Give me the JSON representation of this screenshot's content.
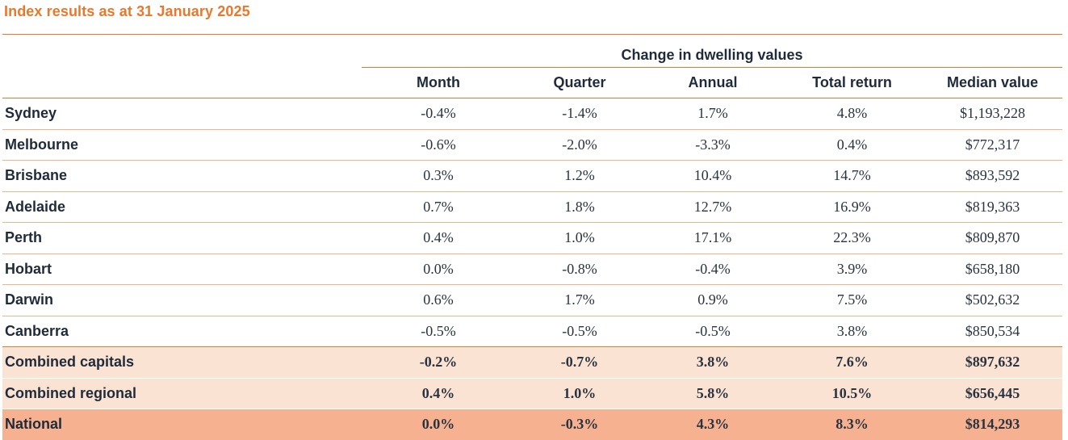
{
  "title": "Index results as at 31 January 2025",
  "group_header": "Change in dwelling values",
  "columns": [
    "Month",
    "Quarter",
    "Annual",
    "Total return",
    "Median value"
  ],
  "rows": [
    {
      "label": "Sydney",
      "values": [
        "-0.4%",
        "-1.4%",
        "1.7%",
        "4.8%",
        "$1,193,228"
      ]
    },
    {
      "label": "Melbourne",
      "values": [
        "-0.6%",
        "-2.0%",
        "-3.3%",
        "0.4%",
        "$772,317"
      ]
    },
    {
      "label": "Brisbane",
      "values": [
        "0.3%",
        "1.2%",
        "10.4%",
        "14.7%",
        "$893,592"
      ]
    },
    {
      "label": "Adelaide",
      "values": [
        "0.7%",
        "1.8%",
        "12.7%",
        "16.9%",
        "$819,363"
      ]
    },
    {
      "label": "Perth",
      "values": [
        "0.4%",
        "1.0%",
        "17.1%",
        "22.3%",
        "$809,870"
      ]
    },
    {
      "label": "Hobart",
      "values": [
        "0.0%",
        "-0.8%",
        "-0.4%",
        "3.9%",
        "$658,180"
      ]
    },
    {
      "label": "Darwin",
      "values": [
        "0.6%",
        "1.7%",
        "0.9%",
        "7.5%",
        "$502,632"
      ]
    },
    {
      "label": "Canberra",
      "values": [
        "-0.5%",
        "-0.5%",
        "-0.5%",
        "3.8%",
        "$850,534"
      ]
    },
    {
      "label": "Combined capitals",
      "values": [
        "-0.2%",
        "-0.7%",
        "3.8%",
        "7.6%",
        "$897,632"
      ]
    },
    {
      "label": "Combined regional",
      "values": [
        "0.4%",
        "1.0%",
        "5.8%",
        "10.5%",
        "$656,445"
      ]
    },
    {
      "label": "National",
      "values": [
        "0.0%",
        "-0.3%",
        "4.3%",
        "8.3%",
        "$814,293"
      ]
    }
  ],
  "colors": {
    "accent": "#e8782c",
    "summary_light": "#fbe3d3",
    "summary_dark": "#f6b290"
  }
}
